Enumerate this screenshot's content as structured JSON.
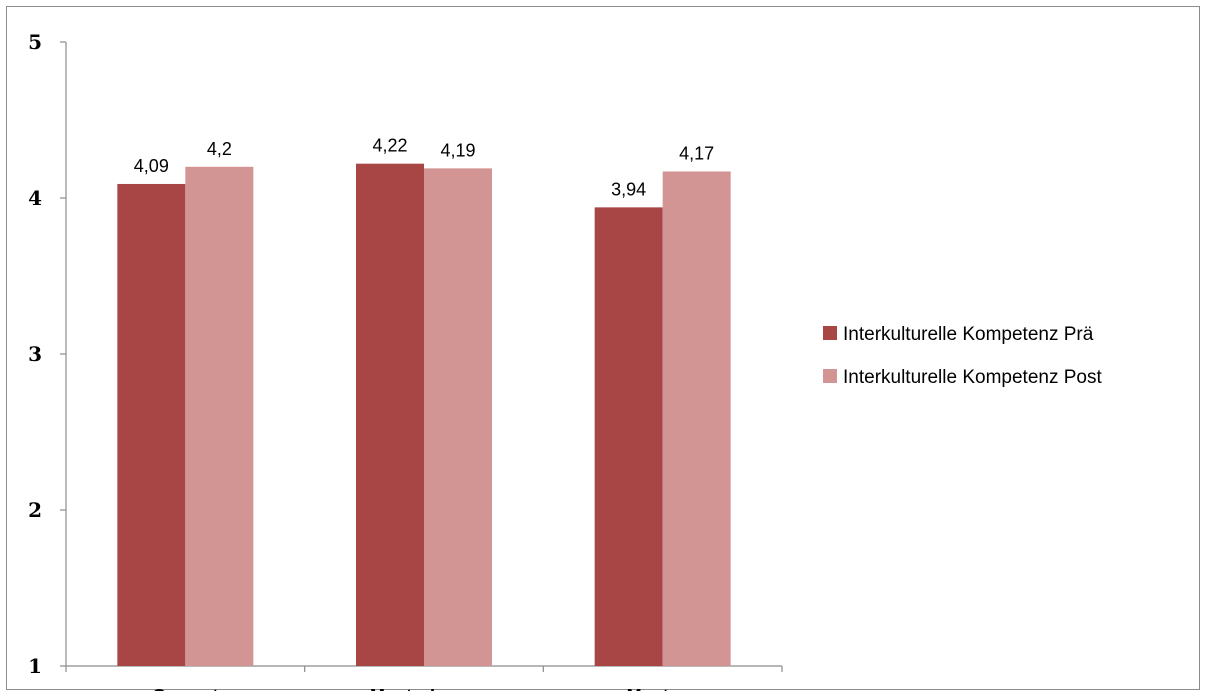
{
  "chart_data": {
    "type": "bar",
    "categories": [
      "Gesamt",
      "MentorInnen",
      "Mentees"
    ],
    "series": [
      {
        "name": "Interkulturelle Kompetenz Prä",
        "values": [
          4.09,
          4.22,
          3.94
        ],
        "labels": [
          "4,09",
          "4,22",
          "3,94"
        ],
        "color": "#a84646"
      },
      {
        "name": "Interkulturelle Kompetenz Post",
        "values": [
          4.2,
          4.19,
          4.17
        ],
        "labels": [
          "4,2",
          "4,19",
          "4,17"
        ],
        "color": "#d39593"
      }
    ],
    "yticks": [
      1,
      2,
      3,
      4,
      5
    ],
    "ylim": [
      1,
      5
    ],
    "legend_position": "right",
    "grid": false
  }
}
